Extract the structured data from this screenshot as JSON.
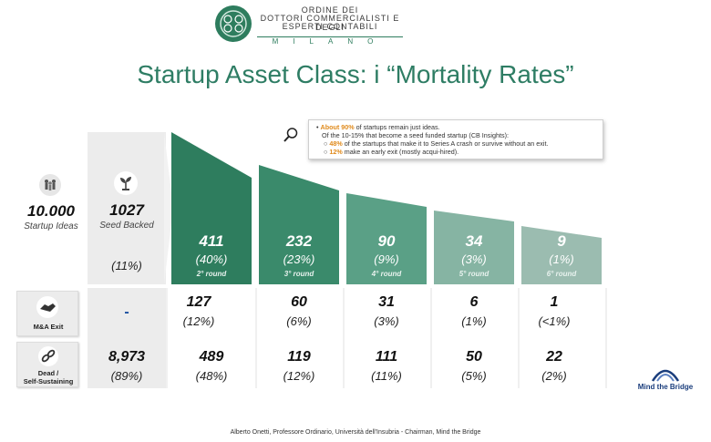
{
  "header": {
    "logo_line1": "ORDINE DEI",
    "logo_line2": "DOTTORI COMMERCIALISTI E DEGLI",
    "logo_line3": "ESPERTI CONTABILI",
    "logo_city": "MILANO"
  },
  "title": "Startup Asset Class: i “Mortality Rates”",
  "note": {
    "l1_bold": "About 90%",
    "l1_rest": " of startups remain just ideas.",
    "l2": "Of the 10-15% that become a seed funded startup (CB Insights):",
    "l3_bold": "48%",
    "l3_rest": " of the startups that make it to Series A crash or survive without an exit.",
    "l4_bold": "12%",
    "l4_rest": " make an early exit (mostly acqui-hired)."
  },
  "startup_ideas": {
    "value": "10.000",
    "label": "Startup Ideas"
  },
  "seed_backed": {
    "value": "1027",
    "label": "Seed Backed",
    "pct": "(11%)"
  },
  "rounds": [
    {
      "value": "411",
      "pct": "(40%)",
      "label": "2° round"
    },
    {
      "value": "232",
      "pct": "(23%)",
      "label": "3° round"
    },
    {
      "value": "90",
      "pct": "(9%)",
      "label": "4° round"
    },
    {
      "value": "34",
      "pct": "(3%)",
      "label": "5° round"
    },
    {
      "value": "9",
      "pct": "(1%)",
      "label": "6° round"
    }
  ],
  "colors": {
    "round_colors": [
      "#2e7d5e",
      "#3a8a6b",
      "#5aa086",
      "#86b4a3",
      "#9bbcb0"
    ],
    "accent": "#e08b1d",
    "title": "#2e7d64"
  },
  "mna": {
    "label": "M&A Exit",
    "seed": "-",
    "cells": [
      {
        "value": "127",
        "pct": "(12%)"
      },
      {
        "value": "60",
        "pct": "(6%)"
      },
      {
        "value": "31",
        "pct": "(3%)"
      },
      {
        "value": "6",
        "pct": "(1%)"
      },
      {
        "value": "1",
        "pct": "(<1%)"
      }
    ]
  },
  "dead": {
    "label_l1": "Dead /",
    "label_l2": "Self-Sustaining",
    "seed_value": "8,973",
    "seed_pct": "(89%)",
    "cells": [
      {
        "value": "489",
        "pct": "(48%)"
      },
      {
        "value": "119",
        "pct": "(12%)"
      },
      {
        "value": "111",
        "pct": "(11%)"
      },
      {
        "value": "50",
        "pct": "(5%)"
      },
      {
        "value": "22",
        "pct": "(2%)"
      }
    ]
  },
  "brand": "Mind the Bridge",
  "footer": "Alberto Onetti, Professore Ordinario, Università dell'Insubria - Chairman, Mind the Bridge"
}
